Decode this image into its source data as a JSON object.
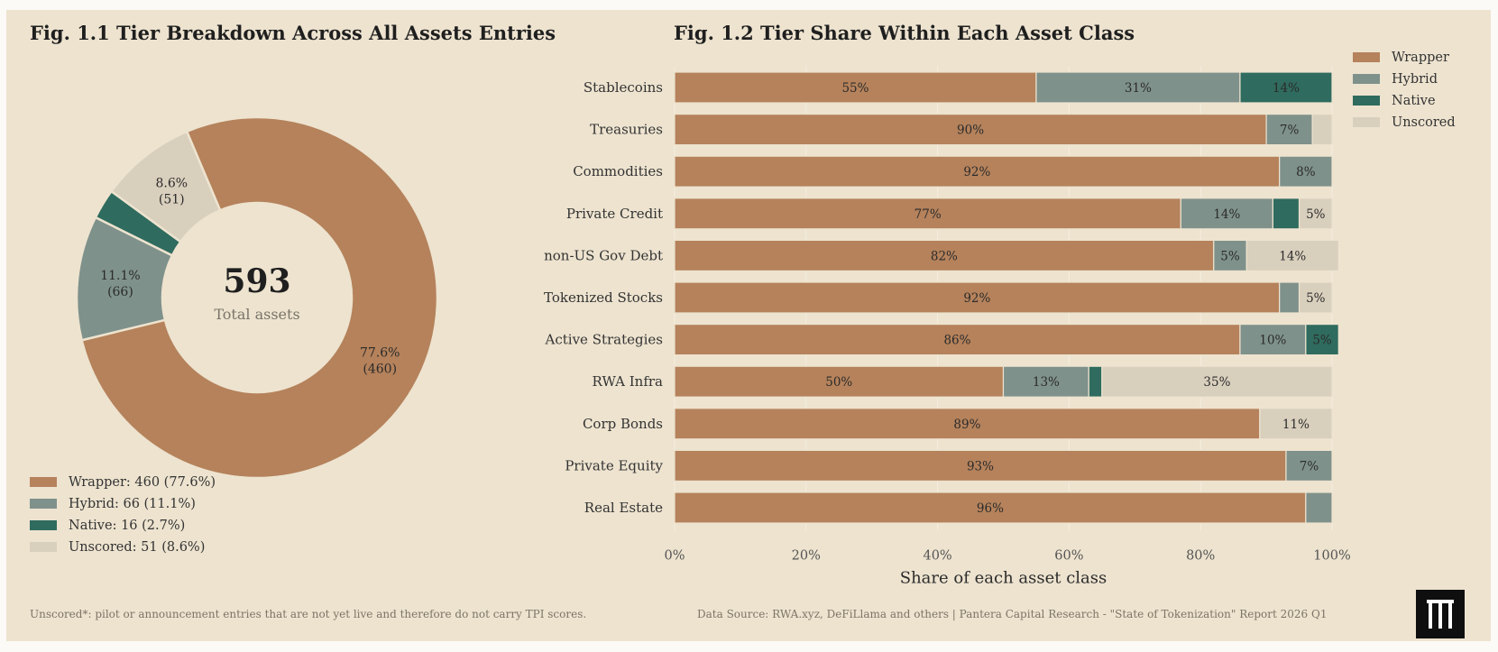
{
  "fig11": {
    "title": "Fig. 1.1  Tier Breakdown Across All Assets Entries",
    "center_value": "593",
    "center_label": "Total assets",
    "legend": [
      "Wrapper: 460 (77.6%)",
      "Hybrid: 66 (11.1%)",
      "Native: 16 (2.7%)",
      "Unscored: 51 (8.6%)"
    ]
  },
  "fig12": {
    "title": "Fig. 1.2  Tier Share Within Each Asset Class",
    "legend": [
      "Wrapper",
      "Hybrid",
      "Native",
      "Unscored"
    ]
  },
  "colors": {
    "Wrapper": "#b5825b",
    "Hybrid": "#7f918b",
    "Native": "#2f6b5e",
    "Unscored": "#d9cfbd"
  },
  "chart_data": [
    {
      "type": "pie",
      "donut": true,
      "title": "Fig. 1.1  Tier Breakdown Across All Assets Entries",
      "total": 593,
      "slices": [
        {
          "name": "Wrapper",
          "value": 460,
          "pct": "77.6%",
          "label": "77.6%",
          "count_label": "(460)"
        },
        {
          "name": "Hybrid",
          "value": 66,
          "pct": "11.1%",
          "label": "11.1%",
          "count_label": "(66)"
        },
        {
          "name": "Native",
          "value": 16,
          "pct": "2.7%",
          "label": "",
          "count_label": ""
        },
        {
          "name": "Unscored",
          "value": 51,
          "pct": "8.6%",
          "label": "8.6%",
          "count_label": "(51)"
        }
      ]
    },
    {
      "type": "bar",
      "orientation": "horizontal",
      "stacked": true,
      "title": "Fig. 1.2  Tier Share Within Each Asset Class",
      "xlabel": "Share of each asset class",
      "xlim": [
        0,
        100
      ],
      "xticks": [
        "0%",
        "20%",
        "40%",
        "60%",
        "80%",
        "100%"
      ],
      "grid": true,
      "legend_position": "top-right",
      "categories": [
        "Stablecoins",
        "Treasuries",
        "Commodities",
        "Private Credit",
        "non-US Gov Debt",
        "Tokenized Stocks",
        "Active Strategies",
        "RWA Infra",
        "Corp Bonds",
        "Private Equity",
        "Real Estate"
      ],
      "series": [
        {
          "name": "Wrapper",
          "values": [
            55,
            90,
            92,
            77,
            82,
            92,
            86,
            50,
            89,
            93,
            96
          ]
        },
        {
          "name": "Hybrid",
          "values": [
            31,
            7,
            8,
            14,
            5,
            3,
            10,
            13,
            0,
            7,
            4
          ]
        },
        {
          "name": "Native",
          "values": [
            14,
            0,
            0,
            4,
            0,
            0,
            5,
            2,
            0,
            0,
            0
          ]
        },
        {
          "name": "Unscored",
          "values": [
            0,
            3,
            0,
            5,
            14,
            5,
            0,
            35,
            11,
            0,
            0
          ]
        }
      ],
      "data_labels": [
        [
          "55%",
          "31%",
          "14%",
          ""
        ],
        [
          "90%",
          "7%",
          "",
          ""
        ],
        [
          "92%",
          "8%",
          "",
          ""
        ],
        [
          "77%",
          "14%",
          "",
          "5%"
        ],
        [
          "82%",
          "5%",
          "",
          "14%"
        ],
        [
          "92%",
          "",
          "",
          "5%"
        ],
        [
          "86%",
          "10%",
          "5%",
          ""
        ],
        [
          "50%",
          "13%",
          "",
          "35%"
        ],
        [
          "89%",
          "",
          "",
          "11%"
        ],
        [
          "93%",
          "7%",
          "",
          ""
        ],
        [
          "96%",
          "",
          "",
          ""
        ]
      ]
    }
  ],
  "footnote_left": "Unscored*: pilot or announcement entries that are not yet live and therefore do not carry TPI scores.",
  "footnote_right": "Data Source: RWA.xyz, DeFiLlama and others | Pantera Capital Research - \"State of Tokenization\" Report 2026 Q1"
}
